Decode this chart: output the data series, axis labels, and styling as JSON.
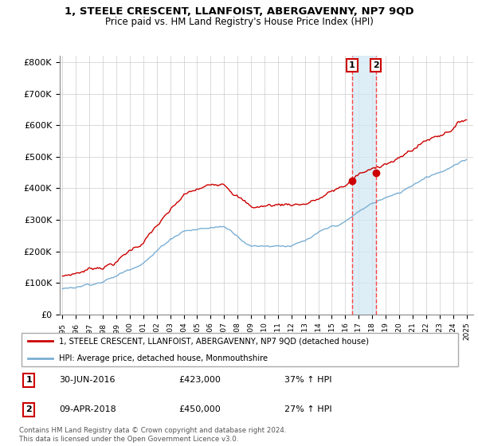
{
  "title": "1, STEELE CRESCENT, LLANFOIST, ABERGAVENNY, NP7 9QD",
  "subtitle": "Price paid vs. HM Land Registry's House Price Index (HPI)",
  "legend_line1": "1, STEELE CRESCENT, LLANFOIST, ABERGAVENNY, NP7 9QD (detached house)",
  "legend_line2": "HPI: Average price, detached house, Monmouthshire",
  "annotation1_date": "30-JUN-2016",
  "annotation1_price": "£423,000",
  "annotation1_hpi": "37% ↑ HPI",
  "annotation2_date": "09-APR-2018",
  "annotation2_price": "£450,000",
  "annotation2_hpi": "27% ↑ HPI",
  "footer": "Contains HM Land Registry data © Crown copyright and database right 2024.\nThis data is licensed under the Open Government Licence v3.0.",
  "red_color": "#cc0000",
  "blue_color": "#7bafd4",
  "shade_color": "#d0e8f5",
  "vline_color": "#ff4444",
  "ylim": [
    0,
    820000
  ],
  "yticks": [
    0,
    100000,
    200000,
    300000,
    400000,
    500000,
    600000,
    700000,
    800000
  ],
  "ytick_labels": [
    "£0",
    "£100K",
    "£200K",
    "£300K",
    "£400K",
    "£500K",
    "£600K",
    "£700K",
    "£800K"
  ],
  "sale1_x": 2016.5,
  "sale1_y": 423000,
  "sale2_x": 2018.27,
  "sale2_y": 450000,
  "xmin": 1994.8,
  "xmax": 2025.5,
  "red_base_years": [
    1995,
    1996,
    1997,
    1998,
    1999,
    2000,
    2001,
    2002,
    2003,
    2004,
    2005,
    2006,
    2007,
    2008,
    2009,
    2010,
    2011,
    2012,
    2013,
    2014,
    2015,
    2016,
    2017,
    2018,
    2019,
    2020,
    2021,
    2022,
    2023,
    2024,
    2025
  ],
  "red_base_vals": [
    118000,
    130000,
    145000,
    158000,
    175000,
    210000,
    240000,
    290000,
    330000,
    375000,
    390000,
    400000,
    420000,
    390000,
    350000,
    355000,
    360000,
    365000,
    370000,
    385000,
    405000,
    425000,
    460000,
    470000,
    500000,
    510000,
    540000,
    570000,
    590000,
    620000,
    650000
  ],
  "blue_base_years": [
    1995,
    1996,
    1997,
    1998,
    1999,
    2000,
    2001,
    2002,
    2003,
    2004,
    2005,
    2006,
    2007,
    2008,
    2009,
    2010,
    2011,
    2012,
    2013,
    2014,
    2015,
    2016,
    2017,
    2018,
    2019,
    2020,
    2021,
    2022,
    2023,
    2024,
    2025
  ],
  "blue_base_vals": [
    80000,
    88000,
    100000,
    112000,
    128000,
    152000,
    180000,
    215000,
    255000,
    285000,
    290000,
    295000,
    300000,
    275000,
    245000,
    248000,
    252000,
    255000,
    265000,
    285000,
    300000,
    315000,
    345000,
    370000,
    390000,
    400000,
    430000,
    460000,
    480000,
    500000,
    515000
  ]
}
